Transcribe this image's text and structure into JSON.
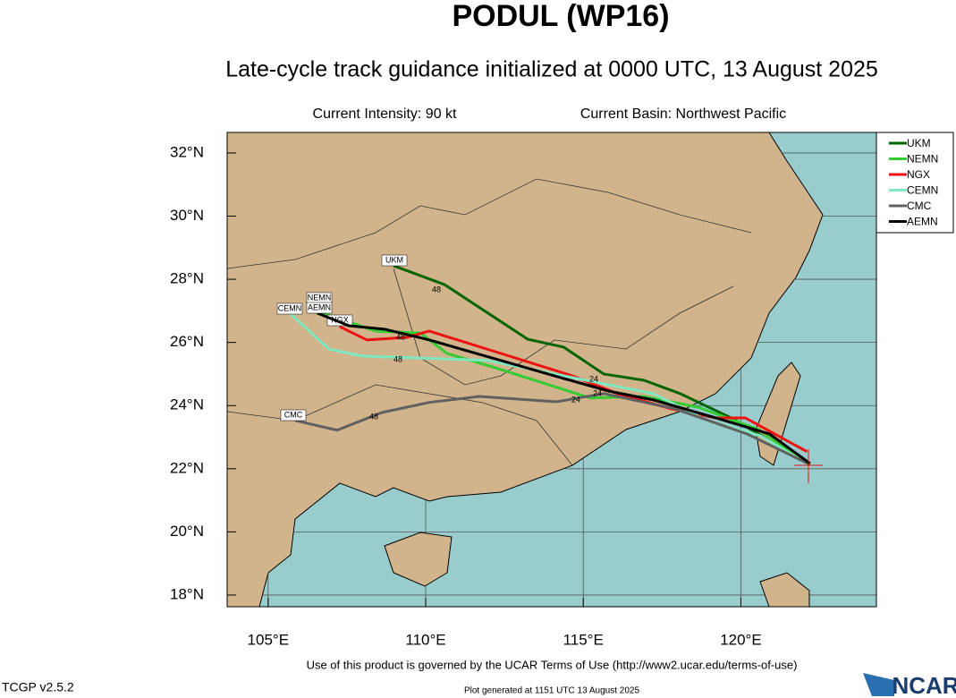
{
  "chart_data": {
    "type": "track-map",
    "title": "PODUL (WP16)",
    "subtitle": "Late-cycle track guidance initialized at 0000 UTC, 13 August 2025",
    "intensity": "Current Intensity: 90 kt",
    "basin": "Current Basin: Northwest Pacific",
    "footer": "Use of this product is governed by the UCAR Terms of Use (http://www2.ucar.edu/terms-of-use)",
    "version": "TCGP v2.5.2",
    "generated": "Plot generated at 1151 UTC   13 August 2025",
    "logo": "NCAR",
    "xlim": [
      103.7,
      124.3
    ],
    "ylim": [
      17.63,
      32.65
    ],
    "xticks": [
      {
        "value": 105,
        "label": "105°E"
      },
      {
        "value": 110,
        "label": "110°E"
      },
      {
        "value": 115,
        "label": "115°E"
      },
      {
        "value": 120,
        "label": "120°E"
      }
    ],
    "yticks": [
      {
        "value": 18,
        "label": "18°N"
      },
      {
        "value": 20,
        "label": "20°N"
      },
      {
        "value": 22,
        "label": "22°N"
      },
      {
        "value": 24,
        "label": "24°N"
      },
      {
        "value": 26,
        "label": "26°N"
      },
      {
        "value": 28,
        "label": "28°N"
      },
      {
        "value": 30,
        "label": "30°N"
      },
      {
        "value": 32,
        "label": "32°N"
      }
    ],
    "grid": true,
    "legend": "top-right",
    "series": [
      {
        "name": "UKM",
        "color": "#006400",
        "x": [
          122.19,
          121.48,
          120.57,
          119.63,
          118.07,
          116.93,
          115.65,
          114.38,
          113.24,
          110.6,
          108.98
        ],
        "values": [
          22.14,
          22.51,
          23.1,
          23.64,
          24.38,
          24.8,
          25.0,
          25.85,
          26.1,
          27.83,
          28.43
        ]
      },
      {
        "name": "NEMN",
        "color": "#33cc33",
        "x": [
          122.05,
          120.57,
          118.64,
          116.93,
          115.23,
          114.09,
          112.1,
          110.68,
          109.83,
          108.41,
          106.99,
          106.28
        ],
        "values": [
          22.2,
          23.24,
          23.95,
          24.29,
          24.24,
          24.6,
          25.23,
          25.65,
          26.3,
          26.36,
          26.84,
          27.0
        ]
      },
      {
        "name": "NGX",
        "color": "#ee1111",
        "x": [
          122.1,
          120.14,
          119.2,
          117.78,
          116.08,
          114.66,
          112.39,
          110.11,
          109.4,
          108.13,
          107.27
        ],
        "values": [
          22.54,
          23.61,
          23.61,
          23.9,
          24.38,
          24.94,
          25.65,
          26.36,
          26.16,
          26.08,
          26.5
        ]
      },
      {
        "name": "CEMN",
        "color": "#7fe8c0",
        "x": [
          121.9,
          120.63,
          118.92,
          117.22,
          115.8,
          114.09,
          111.96,
          107.98,
          106.93,
          105.63
        ],
        "values": [
          22.28,
          23.04,
          23.53,
          24.38,
          24.66,
          25.0,
          25.43,
          25.57,
          25.79,
          26.98
        ]
      },
      {
        "name": "CMC",
        "color": "#606060",
        "x": [
          122.1,
          120.2,
          117.9,
          115.65,
          114.15,
          111.7,
          110.11,
          108.61,
          107.19,
          105.85
        ],
        "values": [
          22.18,
          23.1,
          23.9,
          24.38,
          24.12,
          24.29,
          24.1,
          23.78,
          23.22,
          23.53
        ]
      },
      {
        "name": "AEMN",
        "color": "#000000",
        "x": [
          122.19,
          120.91,
          119.2,
          117.22,
          115.8,
          114.09,
          112.1,
          110.11,
          108.69,
          107.56,
          106.56
        ],
        "values": [
          22.17,
          23.1,
          23.61,
          24.18,
          24.46,
          24.94,
          25.51,
          26.08,
          26.42,
          26.53,
          26.93
        ]
      }
    ],
    "hour_labels": [
      "48",
      "48",
      "48",
      "48",
      "24",
      "24",
      "24"
    ]
  }
}
